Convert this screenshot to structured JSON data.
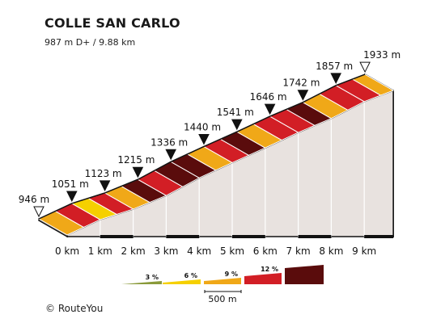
{
  "header": {
    "title": "COLLE SAN CARLO",
    "subtitle": "987 m D+ / 9.88 km"
  },
  "copyright": "© RouteYou",
  "colors": {
    "grade_3": "#8a9a3a",
    "grade_6": "#f5d000",
    "grade_9_orange": "#f0a818",
    "grade_9": "#d21e25",
    "grade_12": "#5a0c0c",
    "side_wall": "#e8e2df",
    "outline": "#111111"
  },
  "chart_data": {
    "type": "area",
    "title": "COLLE SAN CARLO",
    "xlabel": "",
    "ylabel": "",
    "x_unit": "km",
    "y_unit": "m",
    "xlim": [
      0,
      9.88
    ],
    "x_ticks": [
      "0 km",
      "1 km",
      "2 km",
      "3 km",
      "4 km",
      "5 km",
      "6 km",
      "7 km",
      "8 km",
      "9 km"
    ],
    "elevation_labels": [
      {
        "km": 0,
        "label": "946 m",
        "marker": "open"
      },
      {
        "km": 1,
        "label": "1051 m",
        "marker": "filled"
      },
      {
        "km": 2,
        "label": "1123 m",
        "marker": "filled"
      },
      {
        "km": 3,
        "label": "1215 m",
        "marker": "filled"
      },
      {
        "km": 4,
        "label": "1336 m",
        "marker": "filled"
      },
      {
        "km": 5,
        "label": "1440 m",
        "marker": "filled"
      },
      {
        "km": 6,
        "label": "1541 m",
        "marker": "filled"
      },
      {
        "km": 7,
        "label": "1646 m",
        "marker": "filled"
      },
      {
        "km": 8,
        "label": "1742 m",
        "marker": "filled"
      },
      {
        "km": 9,
        "label": "1857 m",
        "marker": "filled"
      },
      {
        "km": 9.88,
        "label": "1933 m",
        "marker": "open"
      }
    ],
    "segments": [
      {
        "from_km": 0.0,
        "to_km": 0.5,
        "grade": 9
      },
      {
        "from_km": 0.5,
        "to_km": 1.0,
        "grade": 12
      },
      {
        "from_km": 1.0,
        "to_km": 1.5,
        "grade": 6
      },
      {
        "from_km": 1.5,
        "to_km": 2.0,
        "grade": 12
      },
      {
        "from_km": 2.0,
        "to_km": 2.5,
        "grade": 9
      },
      {
        "from_km": 2.5,
        "to_km": 3.0,
        "grade": 14
      },
      {
        "from_km": 3.0,
        "to_km": 3.5,
        "grade": 12
      },
      {
        "from_km": 3.5,
        "to_km": 4.0,
        "grade": 14
      },
      {
        "from_km": 4.0,
        "to_km": 4.5,
        "grade": 14
      },
      {
        "from_km": 4.5,
        "to_km": 5.0,
        "grade": 9
      },
      {
        "from_km": 5.0,
        "to_km": 5.5,
        "grade": 12
      },
      {
        "from_km": 5.5,
        "to_km": 6.0,
        "grade": 14
      },
      {
        "from_km": 6.0,
        "to_km": 6.5,
        "grade": 9
      },
      {
        "from_km": 6.5,
        "to_km": 7.0,
        "grade": 12
      },
      {
        "from_km": 7.0,
        "to_km": 7.5,
        "grade": 12
      },
      {
        "from_km": 7.5,
        "to_km": 8.0,
        "grade": 14
      },
      {
        "from_km": 8.0,
        "to_km": 8.5,
        "grade": 9
      },
      {
        "from_km": 8.5,
        "to_km": 9.0,
        "grade": 12
      },
      {
        "from_km": 9.0,
        "to_km": 9.5,
        "grade": 12
      },
      {
        "from_km": 9.5,
        "to_km": 9.88,
        "grade": 9
      }
    ],
    "legend": {
      "placement": "bottom-center",
      "items": [
        {
          "label": "3 %",
          "color": "#8a9a3a"
        },
        {
          "label": "6 %",
          "color": "#f5d000"
        },
        {
          "label": "9 %",
          "color": "#f0a818"
        },
        {
          "label": "12 %",
          "color": "#d21e25"
        },
        {
          "label": "",
          "color": "#5a0c0c"
        }
      ],
      "scale_label": "500 m"
    },
    "grid": false
  }
}
